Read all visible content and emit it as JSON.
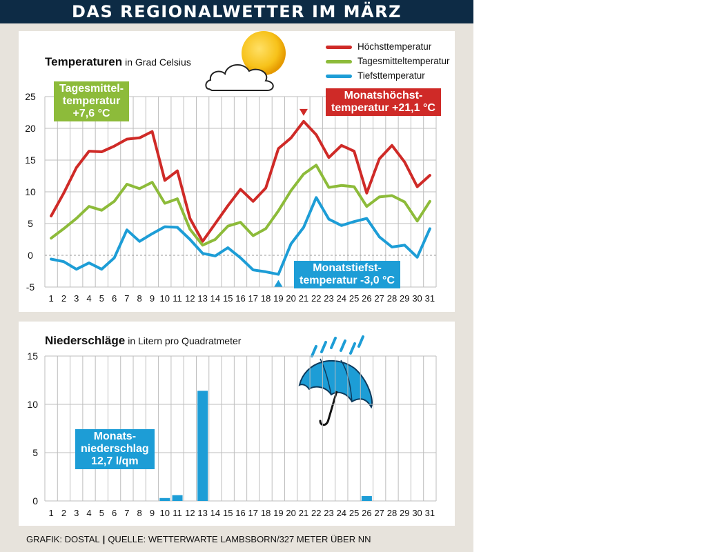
{
  "header": {
    "title": "DAS REGIONALWETTER IM MÄRZ"
  },
  "temperature_panel": {
    "title": "Temperaturen",
    "unit": "in Grad Celsius",
    "legend": [
      "Höchsttemperatur",
      "Tagesmitteltemperatur",
      "Tiefsttemperatur"
    ],
    "callouts": {
      "mean": [
        "Tagesmittel-",
        "temperatur",
        "+7,6 °C"
      ],
      "max": [
        "Monatshöchst-",
        "temperatur +21,1 °C"
      ],
      "min": [
        "Monatstiefst-",
        "temperatur -3,0 °C"
      ]
    }
  },
  "precipitation_panel": {
    "title": "Niederschläge",
    "unit": "in Litern pro Quadratmeter",
    "callout": [
      "Monats-",
      "niederschlag",
      "12,7 l/qm"
    ]
  },
  "footer": {
    "credit": "GRAFIK: DOSTAL",
    "source": "QUELLE: WETTERWARTE LAMBSBORN/327 METER ÜBER NN"
  },
  "colors": {
    "max": "#cf2a27",
    "mean": "#8dbb3a",
    "min": "#1d9dd6",
    "bar": "#1d9dd6",
    "banner": "#0d2b45",
    "grid": "#bdbdbd"
  },
  "icons": [
    "sun-icon",
    "cloud-icon",
    "umbrella-icon",
    "rain-icon"
  ],
  "chart_data": [
    {
      "type": "line",
      "x": [
        1,
        2,
        3,
        4,
        5,
        6,
        7,
        8,
        9,
        10,
        11,
        12,
        13,
        14,
        15,
        16,
        17,
        18,
        19,
        20,
        21,
        22,
        23,
        24,
        25,
        26,
        27,
        28,
        29,
        30,
        31
      ],
      "ylim": [
        -5,
        25
      ],
      "yticks": [
        -5,
        0,
        5,
        10,
        15,
        20,
        25
      ],
      "grid": true,
      "legend_position": "top-right",
      "series": [
        {
          "name": "Höchsttemperatur",
          "values": [
            6.2,
            9.8,
            13.8,
            16.4,
            16.3,
            17.2,
            18.3,
            18.5,
            19.5,
            11.8,
            13.3,
            5.8,
            2.2,
            5.0,
            7.8,
            10.4,
            8.5,
            10.6,
            16.8,
            18.5,
            21.1,
            19.0,
            15.4,
            17.3,
            16.4,
            9.8,
            15.2,
            17.3,
            14.7,
            10.8,
            12.6
          ]
        },
        {
          "name": "Tagesmitteltemperatur",
          "values": [
            2.7,
            4.2,
            5.8,
            7.7,
            7.1,
            8.5,
            11.2,
            10.5,
            11.5,
            8.2,
            8.9,
            4.1,
            1.6,
            2.5,
            4.6,
            5.2,
            3.1,
            4.2,
            7.0,
            10.2,
            12.8,
            14.2,
            10.7,
            11.0,
            10.8,
            7.7,
            9.2,
            9.4,
            8.4,
            5.4,
            8.5
          ]
        },
        {
          "name": "Tiefsttemperatur",
          "values": [
            -0.6,
            -1.0,
            -2.2,
            -1.2,
            -2.2,
            -0.4,
            4.0,
            2.2,
            3.4,
            4.5,
            4.4,
            2.5,
            0.3,
            -0.1,
            1.2,
            -0.4,
            -2.3,
            -2.6,
            -3.0,
            1.8,
            4.4,
            9.1,
            5.7,
            4.7,
            5.3,
            5.8,
            2.9,
            1.3,
            1.6,
            -0.3,
            4.2
          ]
        }
      ]
    },
    {
      "type": "bar",
      "categories": [
        1,
        2,
        3,
        4,
        5,
        6,
        7,
        8,
        9,
        10,
        11,
        12,
        13,
        14,
        15,
        16,
        17,
        18,
        19,
        20,
        21,
        22,
        23,
        24,
        25,
        26,
        27,
        28,
        29,
        30,
        31
      ],
      "values": [
        0,
        0,
        0,
        0,
        0,
        0,
        0,
        0,
        0,
        0.3,
        0.6,
        0,
        11.4,
        0,
        0,
        0,
        0,
        0,
        0,
        0,
        0,
        0,
        0,
        0,
        0,
        0.5,
        0,
        0,
        0,
        0,
        0
      ],
      "ylim": [
        0,
        15
      ],
      "yticks": [
        0,
        5,
        10,
        15
      ],
      "grid": true
    }
  ]
}
